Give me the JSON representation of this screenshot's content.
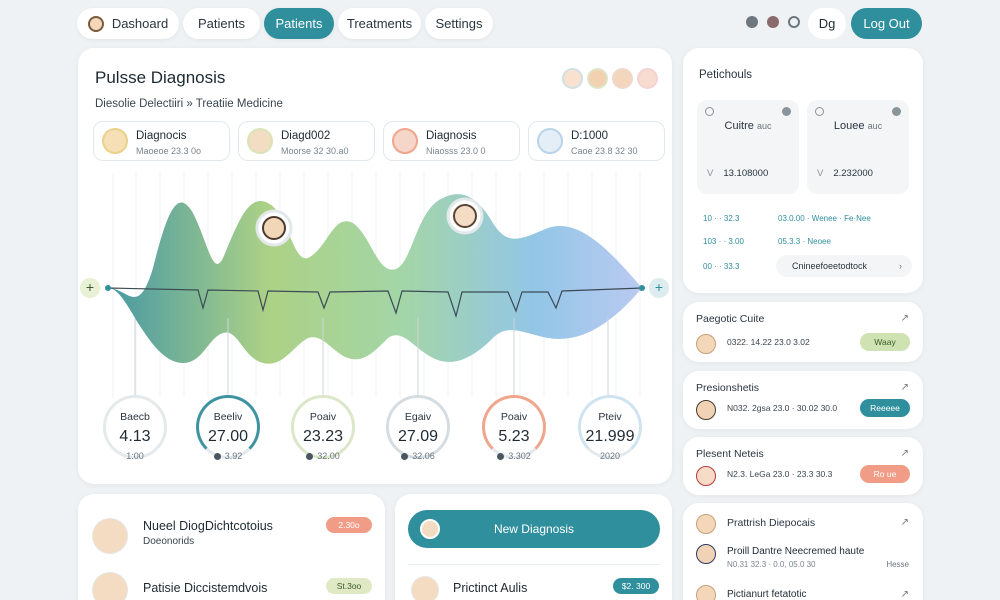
{
  "nav": {
    "items": [
      "Dashoard",
      "Patients",
      "Patients",
      "Treatments",
      "Settings"
    ],
    "profile": "Dg",
    "logout": "Log Out"
  },
  "main": {
    "title": "Pulsse Diagnosis",
    "subtitle": "Diesolie Delectiiri » Treatiie Medicine",
    "patients": [
      {
        "name": "Diagnocis",
        "meta": "Maoeoe 23.3 0o"
      },
      {
        "name": "Diagd002",
        "meta": "Moorse 32 30.a0"
      },
      {
        "name": "Diagnosis",
        "meta": "Niaosss 23.0 0"
      },
      {
        "name": "D:1000",
        "meta": "Caoe 23.8 32 30"
      }
    ],
    "stats": [
      {
        "label": "Baecb",
        "value": "4.13",
        "foot": "1:00",
        "ring": "#e4e9ec"
      },
      {
        "label": "Beeliv",
        "value": "27.00",
        "foot": "3.92",
        "ring": "#3f93a0"
      },
      {
        "label": "Poaiv",
        "value": "23.23",
        "foot": "32.00",
        "ring": "#dbe7c9"
      },
      {
        "label": "Egaiv",
        "value": "27.09",
        "foot": "32.06",
        "ring": "#d5dde2"
      },
      {
        "label": "Poaiv",
        "value": "5.23",
        "foot": "3.302",
        "ring": "#f0a58c"
      },
      {
        "label": "Pteiv",
        "value": "21.999",
        "foot": "2020",
        "ring": "#cfe3f0"
      }
    ]
  },
  "right": {
    "title": "Petichouls",
    "boxes": [
      {
        "name": "Cuitre",
        "unit": "auc",
        "num": "13.108000",
        "lead": "V"
      },
      {
        "name": "Louee",
        "unit": "auc",
        "num": "2.232000",
        "lead": "V"
      }
    ],
    "lines": [
      {
        "a": "10 · · 32.3",
        "b": "03.0.00 · Wenee · Fe·Nee"
      },
      {
        "a": "103 · · 3.00",
        "b": "05.3.3 · Neoee"
      },
      {
        "a": "00 · · 33.3",
        "b": ""
      }
    ],
    "search": "Cnineefoeetodtock"
  },
  "side_cards": [
    {
      "title": "Paegotic Cuite",
      "text": "0322. 14.22 23.0 3.02",
      "badge": "Waay",
      "badge_color": "#cfe3b2",
      "badge_text_color": "#3a5a2a"
    },
    {
      "title": "Presionshetis",
      "text": "N032. 2gsa 23.0 · 30.02 30.0",
      "badge": "Reeeee",
      "badge_color": "#2f8f9d",
      "badge_text_color": "#ffffff"
    },
    {
      "title": "Plesent Neteis",
      "text": "N2.3. LeGa 23.0 · 23.3 30.3",
      "badge": "Ro ue",
      "badge_color": "#f19c87",
      "badge_text_color": "#ffffff"
    }
  ],
  "side_list": {
    "title": "Prattrish Diepocais",
    "rows": [
      {
        "title": "Proill Dantre Neecremed haute",
        "sub": "N0.31 32.3 · 0.0, 05.0 30",
        "tag": "Hesse"
      },
      {
        "title": "Pictianurt fetatotic",
        "sub": "",
        "tag": ""
      }
    ]
  },
  "bottom_left": {
    "rows": [
      {
        "title": "Nueel DiogDichtcotoius",
        "sub": "Doeonorids",
        "badge": "2.30o",
        "badge_color": "#f19c87",
        "badge_text": "#ffffff"
      },
      {
        "title": "Patisie Diccistemdvois",
        "sub": "",
        "badge": "St.3oo",
        "badge_color": "#dfe9c4",
        "badge_text": "#3a5a2a"
      }
    ]
  },
  "bottom_mid": {
    "button": "New Diagnosis",
    "row_title": "Prictinct Aulis",
    "row_badge": "$2. 300"
  },
  "colors": {
    "accent": "#2f8f9d",
    "bg": "#eef2f4"
  }
}
